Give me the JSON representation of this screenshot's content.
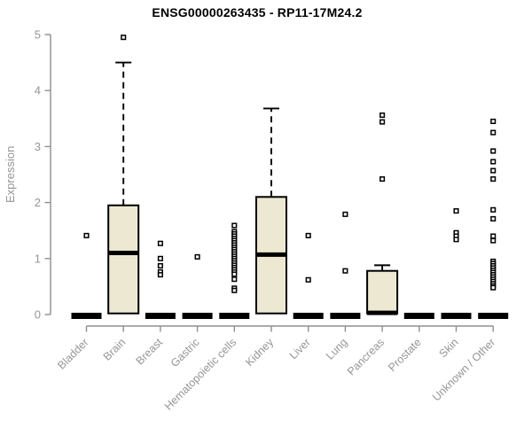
{
  "title": "ENSG00000263435 - RP11-17M24.2",
  "colors": {
    "background": "#ffffff",
    "box_fill": "#ede8d1",
    "stroke": "#000000",
    "axis": "#8f8f8f",
    "label": "#969696",
    "title": "#000000"
  },
  "chart_data": {
    "type": "boxplot",
    "title": "ENSG00000263435 - RP11-17M24.2",
    "xlabel": "",
    "ylabel": "Expression",
    "ylim": [
      0,
      5
    ],
    "yticks": [
      "0",
      "1",
      "2",
      "3",
      "4",
      "5"
    ],
    "grid": false,
    "legend": false,
    "categories": [
      "Bladder",
      "Brain",
      "Breast",
      "Gastric",
      "Hematopoietic cells",
      "Kidney",
      "Liver",
      "Lung",
      "Pancreas",
      "Prostate",
      "Skin",
      "Unknown / Other"
    ],
    "series": [
      {
        "category": "Bladder",
        "q1": 0,
        "median": 0,
        "q3": 0,
        "whisker_low": 0,
        "whisker_high": 0,
        "outliers": [
          1.41
        ]
      },
      {
        "category": "Brain",
        "q1": 0.02,
        "median": 1.1,
        "q3": 1.95,
        "whisker_low": 0,
        "whisker_high": 4.5,
        "outliers": [
          4.95
        ]
      },
      {
        "category": "Breast",
        "q1": 0,
        "median": 0,
        "q3": 0,
        "whisker_low": 0,
        "whisker_high": 0,
        "outliers": [
          1.27,
          1.0,
          0.87,
          0.76,
          0.71
        ]
      },
      {
        "category": "Gastric",
        "q1": 0,
        "median": 0,
        "q3": 0,
        "whisker_low": 0,
        "whisker_high": 0,
        "outliers": [
          1.03
        ]
      },
      {
        "category": "Hematopoietic cells",
        "q1": 0,
        "median": 0,
        "q3": 0,
        "whisker_low": 0,
        "whisker_high": 0,
        "outliers": [
          1.59,
          1.48,
          1.44,
          1.4,
          1.36,
          1.32,
          1.28,
          1.24,
          1.2,
          1.16,
          1.12,
          1.08,
          1.04,
          1.0,
          0.96,
          0.92,
          0.88,
          0.84,
          0.8,
          0.76,
          0.72,
          0.63,
          0.47,
          0.43
        ]
      },
      {
        "category": "Kidney",
        "q1": 0.02,
        "median": 1.07,
        "q3": 2.1,
        "whisker_low": 0,
        "whisker_high": 3.68,
        "outliers": []
      },
      {
        "category": "Liver",
        "q1": 0,
        "median": 0,
        "q3": 0,
        "whisker_low": 0,
        "whisker_high": 0,
        "outliers": [
          1.41,
          0.62
        ]
      },
      {
        "category": "Lung",
        "q1": 0,
        "median": 0,
        "q3": 0,
        "whisker_low": 0,
        "whisker_high": 0,
        "outliers": [
          1.79,
          0.78
        ]
      },
      {
        "category": "Pancreas",
        "q1": 0.02,
        "median": 0.03,
        "q3": 0.78,
        "whisker_low": 0,
        "whisker_high": 0.88,
        "outliers": [
          3.56,
          3.44,
          2.42
        ]
      },
      {
        "category": "Prostate",
        "q1": 0,
        "median": 0,
        "q3": 0,
        "whisker_low": 0,
        "whisker_high": 0,
        "outliers": []
      },
      {
        "category": "Skin",
        "q1": 0,
        "median": 0,
        "q3": 0,
        "whisker_low": 0,
        "whisker_high": 0,
        "outliers": [
          1.85,
          1.46,
          1.4,
          1.34
        ]
      },
      {
        "category": "Unknown / Other",
        "q1": 0,
        "median": 0,
        "q3": 0,
        "whisker_low": 0,
        "whisker_high": 0,
        "outliers": [
          3.45,
          3.25,
          2.92,
          2.73,
          2.57,
          2.42,
          1.87,
          1.71,
          1.4,
          1.32,
          0.95,
          0.91,
          0.87,
          0.83,
          0.79,
          0.75,
          0.71,
          0.67,
          0.63,
          0.59,
          0.55,
          0.51,
          0.48
        ]
      }
    ]
  }
}
